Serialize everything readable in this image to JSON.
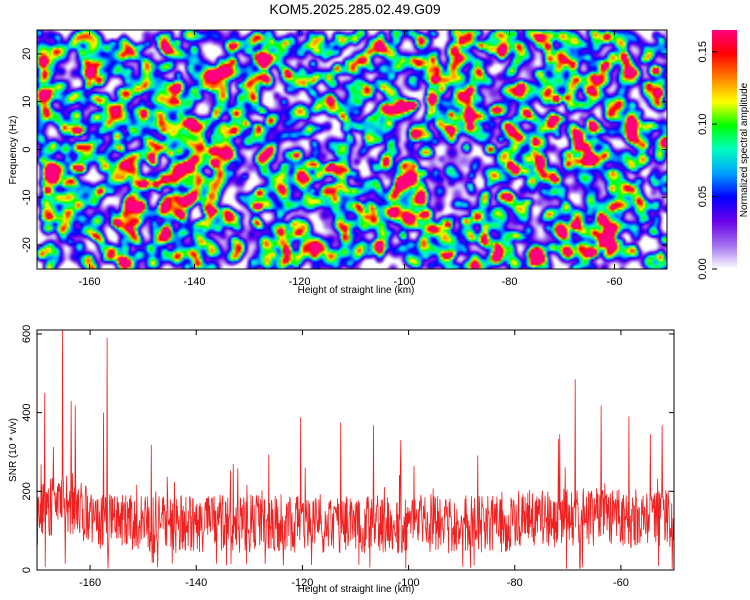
{
  "title": "KOM5.2025.285.02.49.G09",
  "chart_data": [
    {
      "type": "heatmap",
      "xlabel": "Height of straight line (km)",
      "ylabel": "Frequency (Hz)",
      "xlim": [
        -170,
        -50
      ],
      "ylim": [
        -25,
        25
      ],
      "xticks": [
        -160,
        -140,
        -120,
        -100,
        -80,
        -60
      ],
      "yticks": [
        -20,
        -10,
        0,
        10,
        20
      ],
      "colorbar": {
        "label": "Normalized spectral amplitude",
        "range": [
          0.0,
          0.165
        ],
        "ticks": [
          "0.00",
          "0.05",
          "0.10",
          "0.15"
        ],
        "colormap": [
          "#ffffff",
          "#a070f0",
          "#6a00e8",
          "#0000ff",
          "#00a0ff",
          "#00ffc0",
          "#00ff00",
          "#ffff00",
          "#ff8000",
          "#ff0000",
          "#ff0080"
        ]
      },
      "hotspots": [
        {
          "x": -166,
          "y": 13.5,
          "v": 0.1
        },
        {
          "x": -163.5,
          "y": -6.5,
          "v": 0.11
        },
        {
          "x": -148.5,
          "y": -2,
          "v": 0.1
        },
        {
          "x": -162,
          "y": -20,
          "v": 0.09
        },
        {
          "x": -118,
          "y": 22,
          "v": 0.09
        },
        {
          "x": -74.5,
          "y": 23.5,
          "v": 0.11
        },
        {
          "x": -62.5,
          "y": -14.5,
          "v": 0.16
        },
        {
          "x": -101,
          "y": 9,
          "v": 0.09
        },
        {
          "x": -72,
          "y": 7.5,
          "v": 0.08
        },
        {
          "x": -91,
          "y": -21.5,
          "v": 0.09
        }
      ]
    },
    {
      "type": "line",
      "xlabel": "Height of straight line (km)",
      "ylabel": "SNR (10 * v/v)",
      "xlim": [
        -170,
        -50
      ],
      "ylim": [
        0,
        610
      ],
      "xticks": [
        -160,
        -140,
        -120,
        -100,
        -80,
        -60
      ],
      "yticks": [
        0,
        200,
        400,
        600
      ],
      "color": "#ee2020",
      "baseline": 110,
      "peaks": [
        {
          "x": -165.2,
          "y": 610
        },
        {
          "x": -156.8,
          "y": 590
        },
        {
          "x": -168.5,
          "y": 450
        },
        {
          "x": -163.6,
          "y": 430
        },
        {
          "x": -162.8,
          "y": 418
        },
        {
          "x": -157.5,
          "y": 400
        },
        {
          "x": -148.5,
          "y": 318
        },
        {
          "x": -120.3,
          "y": 388
        },
        {
          "x": -112.8,
          "y": 375
        },
        {
          "x": -106.6,
          "y": 368
        },
        {
          "x": -101.5,
          "y": 330
        },
        {
          "x": -68.6,
          "y": 485
        },
        {
          "x": -63.7,
          "y": 418
        },
        {
          "x": -71.5,
          "y": 345
        },
        {
          "x": -58.5,
          "y": 390
        },
        {
          "x": -52.2,
          "y": 368
        },
        {
          "x": -54.5,
          "y": 345
        }
      ]
    }
  ]
}
